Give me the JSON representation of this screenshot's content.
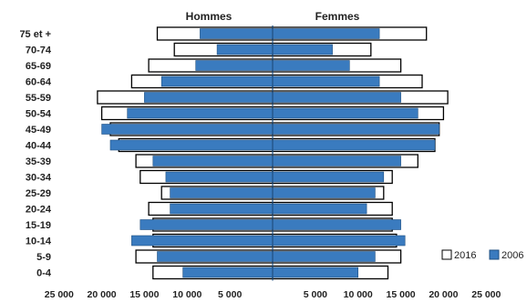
{
  "chart_data": {
    "type": "bar",
    "subtype": "population-pyramid",
    "side_labels": {
      "left": "Hommes",
      "right": "Femmes"
    },
    "categories": [
      "75 et +",
      "70-74",
      "65-69",
      "60-64",
      "55-59",
      "50-54",
      "45-49",
      "40-44",
      "35-39",
      "30-34",
      "25-29",
      "20-24",
      "15-19",
      "10-14",
      "5-9",
      "0-4"
    ],
    "x_ticks": [
      "25 000",
      "20 000",
      "15 000",
      "10 000",
      "5 000",
      "",
      "5 000",
      "10 000",
      "15 000",
      "20 000",
      "25 000"
    ],
    "xlim": [
      -25000,
      25000
    ],
    "series": [
      {
        "name": "2016",
        "color": "#ffffff",
        "edge": "#000000",
        "men": [
          13500,
          11500,
          14500,
          16500,
          20500,
          20000,
          19000,
          18000,
          16000,
          15500,
          13000,
          14500,
          14000,
          14000,
          16000,
          14000
        ],
        "women": [
          18000,
          11500,
          15000,
          17500,
          20500,
          20000,
          19500,
          19000,
          17000,
          14000,
          13000,
          14000,
          14000,
          14500,
          15000,
          13500
        ]
      },
      {
        "name": "2006",
        "color": "#3a7bbf",
        "edge": "#1f4f80",
        "men": [
          8500,
          6500,
          9000,
          13000,
          15000,
          17000,
          20000,
          19000,
          14000,
          12500,
          12000,
          12000,
          15500,
          16500,
          13500,
          10500
        ],
        "women": [
          12500,
          7000,
          9000,
          12500,
          15000,
          17000,
          19500,
          19000,
          15000,
          13000,
          12000,
          11000,
          15000,
          15500,
          12000,
          10000
        ]
      }
    ],
    "legend": [
      "2016",
      "2006"
    ],
    "legend_position": "bottom-right"
  }
}
